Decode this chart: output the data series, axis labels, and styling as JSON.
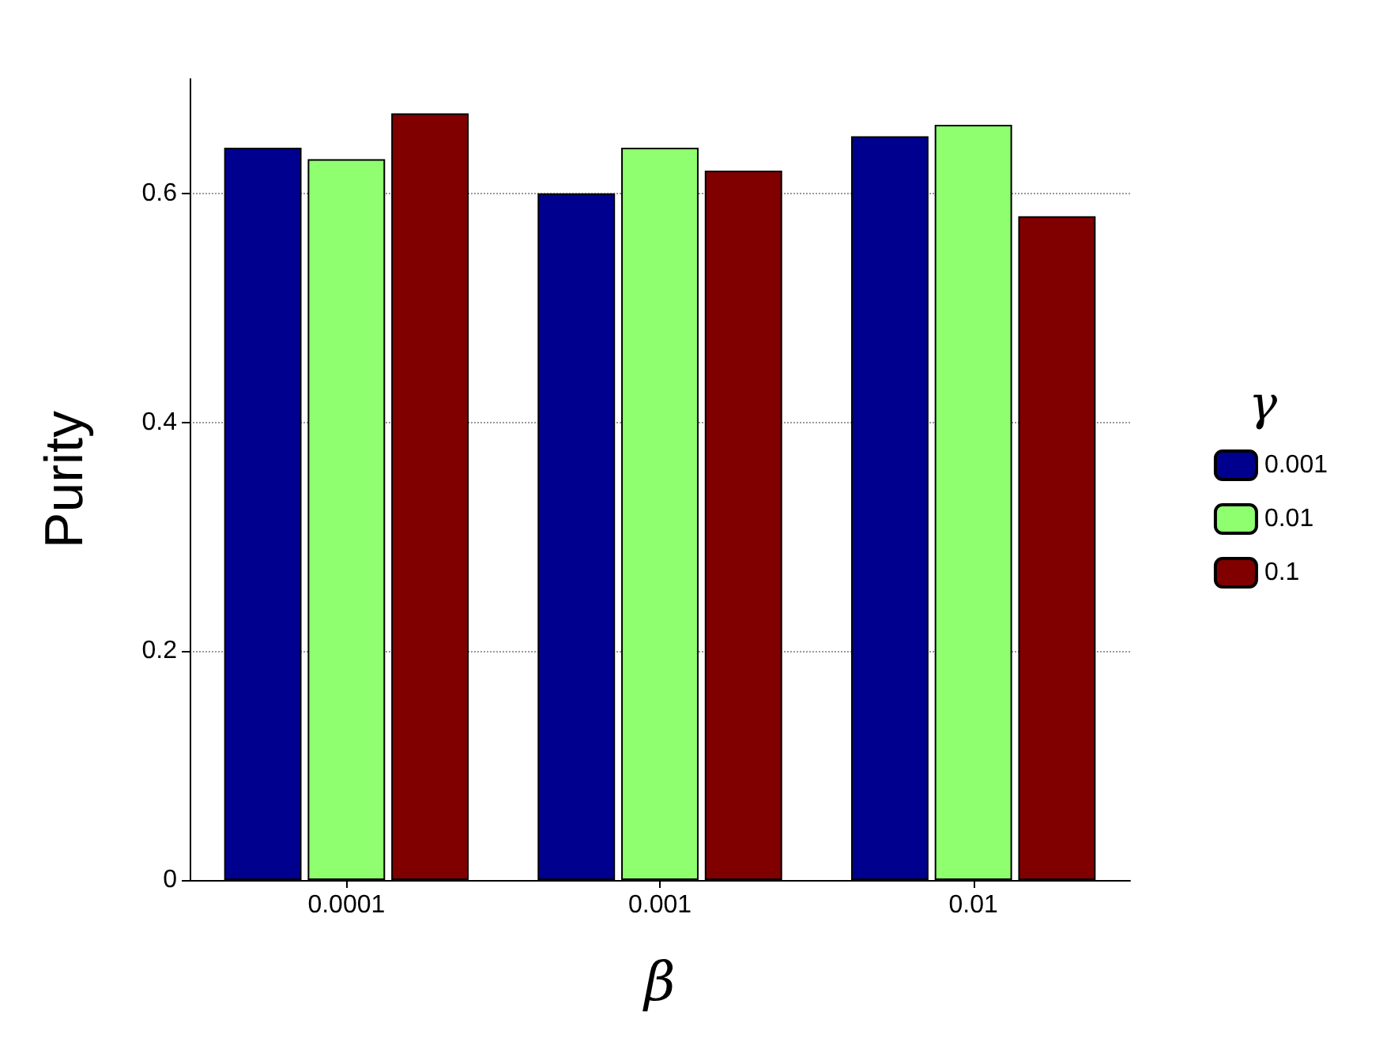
{
  "chart_data": {
    "type": "bar",
    "categories": [
      "0.0001",
      "0.001",
      "0.01"
    ],
    "xlabel": "β",
    "ylabel": "Purity",
    "legend_title": "γ",
    "series": [
      {
        "name": "0.001",
        "color": "#00008f",
        "values": [
          0.64,
          0.6,
          0.65
        ]
      },
      {
        "name": "0.01",
        "color": "#8fff70",
        "values": [
          0.63,
          0.64,
          0.66
        ]
      },
      {
        "name": "0.1",
        "color": "#800000",
        "values": [
          0.67,
          0.62,
          0.58
        ]
      }
    ],
    "ylim": [
      0,
      0.7
    ],
    "yticks": [
      0,
      0.2,
      0.4,
      0.6
    ],
    "grid": "y",
    "legend": "right"
  }
}
